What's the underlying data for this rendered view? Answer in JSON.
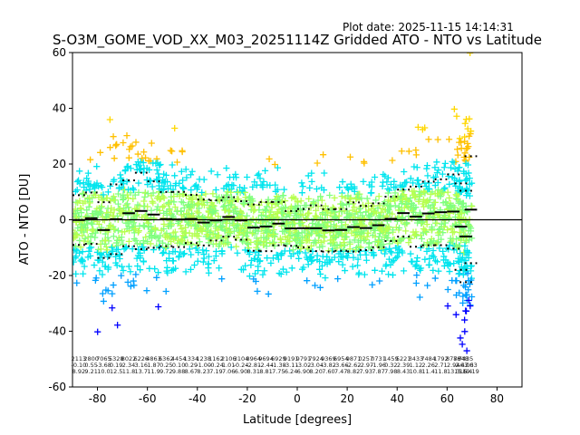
{
  "plot_date": "Plot date: 2025-11-15 14:14:31",
  "chart_data": {
    "type": "scatter",
    "title": "S-O3M_GOME_VOD_XX_M03_20251114Z Gridded ATO - NTO vs Latitude",
    "xlabel": "Latitude [degrees]",
    "ylabel": "ATO - NTO [DU]",
    "xlim": [
      -90,
      90
    ],
    "ylim": [
      -60,
      60
    ],
    "xticks": [
      -80,
      -60,
      -40,
      -20,
      0,
      20,
      40,
      60,
      80
    ],
    "yticks": [
      -60,
      -40,
      -20,
      0,
      20,
      40,
      60
    ],
    "zero_line": 0,
    "marker": "+",
    "point_colors": [
      "#0000ff",
      "#00a0ff",
      "#00e5ee",
      "#7fff7f",
      "#b6ff4f",
      "#ffd700",
      "#ffc000"
    ],
    "bins": [
      {
        "lat": -87.5,
        "count": "2113",
        "mean": "-0.10",
        "std": "8.92"
      },
      {
        "lat": -82.5,
        "count": "2800",
        "mean": "0.55",
        "std": "9.21"
      },
      {
        "lat": -77.5,
        "count": "7065",
        "mean": "-3.68",
        "std": "10.0"
      },
      {
        "lat": -72.5,
        "count": "5328",
        "mean": "0.19",
        "std": "12.5"
      },
      {
        "lat": -67.5,
        "count": "8022",
        "mean": "2.34",
        "std": "11.8"
      },
      {
        "lat": -62.5,
        "count": "6226",
        "mean": "3.16",
        "std": "13.7"
      },
      {
        "lat": -57.5,
        "count": "4863",
        "mean": "1.87",
        "std": "11.9"
      },
      {
        "lat": -52.5,
        "count": "6362",
        "mean": "0.25",
        "std": "9.72"
      },
      {
        "lat": -47.5,
        "count": "4454",
        "mean": "0.10",
        "std": "9.88"
      },
      {
        "lat": -42.5,
        "count": "1334",
        "mean": "0.29",
        "std": "8.67"
      },
      {
        "lat": -37.5,
        "count": "1238",
        "mean": "-1.00",
        "std": "8.23"
      },
      {
        "lat": -32.5,
        "count": "1162",
        "mean": "-0.24",
        "std": "7.19"
      },
      {
        "lat": -27.5,
        "count": "2106",
        "mean": "1.01",
        "std": "7.06"
      },
      {
        "lat": -22.5,
        "count": "3104",
        "mean": "-0.24",
        "std": "6.90"
      },
      {
        "lat": -17.5,
        "count": "8964",
        "mean": "-2.81",
        "std": "8.31"
      },
      {
        "lat": -12.5,
        "count": "9694",
        "mean": "-2.44",
        "std": "8.81"
      },
      {
        "lat": -7.5,
        "count": "6929",
        "mean": "-1.38",
        "std": "7.75"
      },
      {
        "lat": -2.5,
        "count": "9191",
        "mean": "-3.11",
        "std": "6.24"
      },
      {
        "lat": 2.5,
        "count": "9791",
        "mean": "-3.02",
        "std": "6.90"
      },
      {
        "lat": 7.5,
        "count": "7924",
        "mean": "-3.04",
        "std": "8.20"
      },
      {
        "lat": 12.5,
        "count": "9369",
        "mean": "-3.82",
        "std": "7.60"
      },
      {
        "lat": 17.5,
        "count": "6954",
        "mean": "-3.66",
        "std": "7.47"
      },
      {
        "lat": 22.5,
        "count": "9871",
        "mean": "-2.62",
        "std": "8.82"
      },
      {
        "lat": 27.5,
        "count": "0257",
        "mean": "-2.97",
        "std": "7.93"
      },
      {
        "lat": 32.5,
        "count": "0731",
        "mean": "-1.96",
        "std": "7.87"
      },
      {
        "lat": 37.5,
        "count": "1459",
        "mean": "0.32",
        "std": "7.98"
      },
      {
        "lat": 42.5,
        "count": "5221",
        "mean": "2.39",
        "std": "8.43"
      },
      {
        "lat": 47.5,
        "count": "3433",
        "mean": "1.12",
        "std": "10.8"
      },
      {
        "lat": 52.5,
        "count": "7484",
        "mean": "2.26",
        "std": "11.4"
      },
      {
        "lat": 57.5,
        "count": "1792",
        "mean": "2.71",
        "std": "11.8"
      },
      {
        "lat": 62.5,
        "count": "8786",
        "mean": "2.94",
        "std": "13.3"
      },
      {
        "lat": 65.5,
        "count": "7848",
        "mean": "-2.47",
        "std": "15.5"
      },
      {
        "lat": 67.5,
        "count": "7435",
        "mean": "-6.00",
        "std": "16.4"
      },
      {
        "lat": 69.5,
        "count": "",
        "mean": "3.63",
        "std": "19.19"
      }
    ]
  }
}
